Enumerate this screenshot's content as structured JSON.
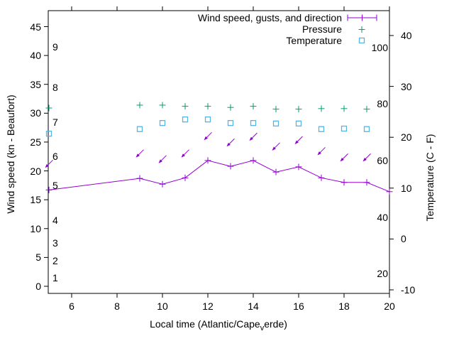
{
  "chart_data": {
    "type": "line",
    "title": "",
    "x_axis": {
      "label_prefix": "Local time (Atlantic/Cape",
      "label_subscript": "v",
      "label_suffix": "erde)",
      "range": [
        5,
        20
      ],
      "ticks": [
        6,
        8,
        10,
        12,
        14,
        16,
        18,
        20
      ]
    },
    "y_axis_left": {
      "label": "Wind speed (kn - Beaufort)",
      "range": [
        0,
        45
      ],
      "ticks": [
        0,
        5,
        10,
        15,
        20,
        25,
        30,
        35,
        40,
        45
      ],
      "beaufort_scale": [
        {
          "beaufort": "1",
          "kn": 1
        },
        {
          "beaufort": "2",
          "kn": 4
        },
        {
          "beaufort": "3",
          "kn": 7
        },
        {
          "beaufort": "4",
          "kn": 11
        },
        {
          "beaufort": "5",
          "kn": 17
        },
        {
          "beaufort": "6",
          "kn": 22
        },
        {
          "beaufort": "7",
          "kn": 28
        },
        {
          "beaufort": "8",
          "kn": 34
        },
        {
          "beaufort": "9",
          "kn": 41
        }
      ]
    },
    "y_axis_right": {
      "label": "Temperature (C - F)",
      "celsius_ticks": [
        40,
        30,
        20,
        10,
        0,
        -10
      ],
      "fahrenheit_labels": [
        100,
        80,
        60,
        40,
        20
      ]
    },
    "legend": {
      "position": "top-right-inside",
      "entries": [
        {
          "label": "Wind speed, gusts, and direction",
          "color": "#9400D3",
          "symbol": "line-with-plus-and-endbars"
        },
        {
          "label": "Pressure",
          "color": "#009E73",
          "symbol": "plus"
        },
        {
          "label": "Temperature",
          "color": "#56B4E9",
          "symbol": "open-square"
        }
      ]
    },
    "series": {
      "wind_speed_kn": {
        "hours": [
          5,
          9,
          10,
          11,
          12,
          13,
          14,
          15,
          16,
          17,
          18,
          19,
          20
        ],
        "values": [
          16.7,
          18.7,
          17.7,
          18.8,
          21.8,
          20.8,
          21.8,
          19.8,
          20.7,
          18.8,
          18.0,
          18.0,
          16.4
        ]
      },
      "wind_gust_direction_arrows": {
        "hours": [
          5,
          9,
          10,
          11,
          12,
          13,
          14,
          15,
          16,
          17,
          18,
          19
        ],
        "values_kn": [
          21.2,
          23.0,
          22.0,
          23.0,
          26.0,
          24.9,
          25.9,
          24.2,
          25.3,
          23.4,
          22.3,
          22.3
        ],
        "direction": "arrows point toward lower-left (wind from NE)"
      },
      "pressure": {
        "hours": [
          5,
          9,
          10,
          11,
          12,
          13,
          14,
          15,
          16,
          17,
          18,
          19
        ],
        "values_left_axis_units": [
          30.9,
          31.4,
          31.4,
          31.2,
          31.2,
          31.0,
          31.2,
          30.7,
          30.7,
          30.8,
          30.8,
          30.7
        ],
        "note": "pressure scale not labeled on chart"
      },
      "temperature_c": {
        "hours": [
          5,
          9,
          10,
          11,
          12,
          13,
          14,
          15,
          16,
          17,
          18,
          19
        ],
        "values": [
          20.7,
          21.6,
          22.8,
          23.5,
          23.5,
          22.8,
          22.8,
          22.7,
          22.7,
          21.6,
          21.7,
          21.6
        ]
      }
    },
    "colors": {
      "wind": "#9400D3",
      "pressure": "#009E73",
      "temperature": "#56B4E9",
      "axis": "#000000"
    },
    "grid": "off"
  }
}
